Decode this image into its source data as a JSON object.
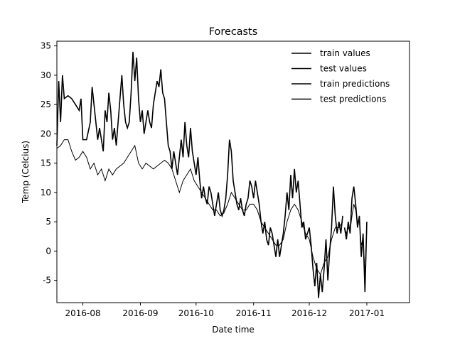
{
  "chart_data": {
    "type": "line",
    "title": "Forecasts",
    "xlabel": "Date time",
    "ylabel": "Temp (Celcius)",
    "x_ticks": [
      "2016-08",
      "2016-09",
      "2016-10",
      "2016-11",
      "2016-12",
      "2017-01"
    ],
    "y_ticks": [
      -5,
      0,
      5,
      10,
      15,
      20,
      25,
      30,
      35
    ],
    "xlim": [
      "2016-07-18",
      "2017-01-24"
    ],
    "ylim": [
      -8.8,
      35.8
    ],
    "grid": false,
    "legend": {
      "placement": "top-right",
      "entries": [
        "train values",
        "test values",
        "train predictions",
        "test predictions"
      ]
    },
    "colors": {
      "line": "#000000",
      "text": "#000000",
      "background": "#ffffff"
    },
    "series": [
      {
        "name": "train values",
        "points": [
          [
            "2016-07-18",
            18
          ],
          [
            "2016-07-19",
            29
          ],
          [
            "2016-07-20",
            22
          ],
          [
            "2016-07-21",
            30
          ],
          [
            "2016-07-22",
            26
          ],
          [
            "2016-07-24",
            26.5
          ],
          [
            "2016-07-26",
            26
          ],
          [
            "2016-07-28",
            25
          ],
          [
            "2016-07-30",
            24
          ],
          [
            "2016-07-31",
            26
          ],
          [
            "2016-08-01",
            19
          ],
          [
            "2016-08-03",
            19
          ],
          [
            "2016-08-05",
            22
          ],
          [
            "2016-08-06",
            28
          ],
          [
            "2016-08-07",
            25
          ],
          [
            "2016-08-08",
            22
          ],
          [
            "2016-08-09",
            19
          ],
          [
            "2016-08-10",
            21
          ],
          [
            "2016-08-11",
            19
          ],
          [
            "2016-08-12",
            17
          ],
          [
            "2016-08-13",
            24
          ],
          [
            "2016-08-14",
            22
          ],
          [
            "2016-08-15",
            27
          ],
          [
            "2016-08-16",
            24
          ],
          [
            "2016-08-17",
            19
          ],
          [
            "2016-08-18",
            21
          ],
          [
            "2016-08-19",
            18
          ],
          [
            "2016-08-20",
            22
          ],
          [
            "2016-08-21",
            26
          ],
          [
            "2016-08-22",
            30
          ],
          [
            "2016-08-23",
            25
          ],
          [
            "2016-08-24",
            22
          ],
          [
            "2016-08-25",
            21
          ],
          [
            "2016-08-26",
            22
          ],
          [
            "2016-08-27",
            27
          ],
          [
            "2016-08-28",
            34
          ],
          [
            "2016-08-29",
            29
          ],
          [
            "2016-08-30",
            33
          ],
          [
            "2016-08-31",
            26
          ],
          [
            "2016-09-01",
            22
          ],
          [
            "2016-09-02",
            24
          ],
          [
            "2016-09-03",
            20
          ],
          [
            "2016-09-04",
            22
          ],
          [
            "2016-09-05",
            24
          ],
          [
            "2016-09-06",
            22
          ],
          [
            "2016-09-07",
            21
          ],
          [
            "2016-09-08",
            25
          ],
          [
            "2016-09-09",
            27
          ],
          [
            "2016-09-10",
            29
          ],
          [
            "2016-09-11",
            28
          ],
          [
            "2016-09-12",
            31
          ],
          [
            "2016-09-13",
            27
          ],
          [
            "2016-09-14",
            26
          ],
          [
            "2016-09-15",
            22
          ],
          [
            "2016-09-16",
            18
          ],
          [
            "2016-09-17",
            17
          ],
          [
            "2016-09-18",
            14
          ],
          [
            "2016-09-19",
            17
          ],
          [
            "2016-09-20",
            15
          ],
          [
            "2016-09-21",
            13
          ],
          [
            "2016-09-22",
            16
          ],
          [
            "2016-09-23",
            19
          ],
          [
            "2016-09-24",
            16
          ],
          [
            "2016-09-25",
            22
          ],
          [
            "2016-09-26",
            18
          ],
          [
            "2016-09-27",
            16
          ],
          [
            "2016-09-28",
            21
          ],
          [
            "2016-09-29",
            17
          ],
          [
            "2016-09-30",
            15
          ],
          [
            "2016-10-01",
            13
          ],
          [
            "2016-10-02",
            16
          ],
          [
            "2016-10-03",
            12
          ],
          [
            "2016-10-04",
            9
          ],
          [
            "2016-10-05",
            11
          ],
          [
            "2016-10-06",
            9
          ],
          [
            "2016-10-07",
            8
          ],
          [
            "2016-10-08",
            11
          ],
          [
            "2016-10-09",
            10
          ],
          [
            "2016-10-10",
            8
          ],
          [
            "2016-10-11",
            6
          ],
          [
            "2016-10-12",
            8
          ],
          [
            "2016-10-13",
            10
          ],
          [
            "2016-10-14",
            7
          ],
          [
            "2016-10-15",
            6
          ],
          [
            "2016-10-16",
            7
          ],
          [
            "2016-10-17",
            9
          ],
          [
            "2016-10-18",
            13
          ],
          [
            "2016-10-19",
            19
          ],
          [
            "2016-10-20",
            17
          ],
          [
            "2016-10-21",
            12
          ],
          [
            "2016-10-22",
            10
          ],
          [
            "2016-10-23",
            8
          ],
          [
            "2016-10-24",
            7
          ],
          [
            "2016-10-25",
            9
          ],
          [
            "2016-10-26",
            7
          ],
          [
            "2016-10-27",
            6
          ],
          [
            "2016-10-28",
            8
          ],
          [
            "2016-10-29",
            9
          ],
          [
            "2016-10-30",
            12
          ],
          [
            "2016-10-31",
            11
          ],
          [
            "2016-11-01",
            9
          ],
          [
            "2016-11-02",
            12
          ],
          [
            "2016-11-03",
            10
          ],
          [
            "2016-11-04",
            8
          ],
          [
            "2016-11-05",
            5
          ],
          [
            "2016-11-06",
            3
          ],
          [
            "2016-11-07",
            5
          ],
          [
            "2016-11-08",
            2
          ],
          [
            "2016-11-09",
            1
          ],
          [
            "2016-11-10",
            4
          ],
          [
            "2016-11-11",
            3
          ],
          [
            "2016-11-12",
            1
          ],
          [
            "2016-11-13",
            -1
          ],
          [
            "2016-11-14",
            2
          ],
          [
            "2016-11-15",
            -1
          ],
          [
            "2016-11-16",
            1
          ],
          [
            "2016-11-17",
            3
          ],
          [
            "2016-11-18",
            6
          ],
          [
            "2016-11-19",
            10
          ],
          [
            "2016-11-20",
            7
          ],
          [
            "2016-11-21",
            13
          ],
          [
            "2016-11-22",
            9
          ],
          [
            "2016-11-23",
            14
          ],
          [
            "2016-11-24",
            10
          ],
          [
            "2016-11-25",
            12
          ],
          [
            "2016-11-26",
            8
          ],
          [
            "2016-11-27",
            4
          ],
          [
            "2016-11-28",
            5
          ],
          [
            "2016-11-29",
            2
          ],
          [
            "2016-11-30",
            3
          ],
          [
            "2016-12-01",
            4
          ],
          [
            "2016-12-02",
            1
          ],
          [
            "2016-12-03",
            -3
          ],
          [
            "2016-12-04",
            -6
          ],
          [
            "2016-12-05",
            -2
          ],
          [
            "2016-12-06",
            -8
          ],
          [
            "2016-12-07",
            -4
          ],
          [
            "2016-12-08",
            -7
          ],
          [
            "2016-12-09",
            -3
          ],
          [
            "2016-12-10",
            2
          ],
          [
            "2016-12-11",
            -5
          ],
          [
            "2016-12-12",
            0
          ],
          [
            "2016-12-13",
            4
          ],
          [
            "2016-12-14",
            11
          ],
          [
            "2016-12-15",
            6
          ],
          [
            "2016-12-16",
            3
          ],
          [
            "2016-12-17",
            5
          ],
          [
            "2016-12-18",
            3
          ],
          [
            "2016-12-19",
            6
          ]
        ]
      },
      {
        "name": "test values",
        "points": [
          [
            "2016-12-20",
            4
          ],
          [
            "2016-12-21",
            2
          ],
          [
            "2016-12-22",
            5
          ],
          [
            "2016-12-23",
            3
          ],
          [
            "2016-12-24",
            9
          ],
          [
            "2016-12-25",
            11
          ],
          [
            "2016-12-26",
            8
          ],
          [
            "2016-12-27",
            4
          ],
          [
            "2016-12-28",
            6
          ],
          [
            "2016-12-29",
            -1
          ],
          [
            "2016-12-30",
            3
          ],
          [
            "2016-12-31",
            -7
          ],
          [
            "2017-01-01",
            5
          ]
        ]
      },
      {
        "name": "train predictions",
        "points": [
          [
            "2016-07-18",
            17.5
          ],
          [
            "2016-07-20",
            18
          ],
          [
            "2016-07-22",
            19
          ],
          [
            "2016-07-24",
            19
          ],
          [
            "2016-07-26",
            17
          ],
          [
            "2016-07-28",
            15.5
          ],
          [
            "2016-07-30",
            16
          ],
          [
            "2016-08-01",
            17
          ],
          [
            "2016-08-03",
            16
          ],
          [
            "2016-08-05",
            14
          ],
          [
            "2016-08-07",
            15
          ],
          [
            "2016-08-09",
            13
          ],
          [
            "2016-08-11",
            14
          ],
          [
            "2016-08-13",
            12
          ],
          [
            "2016-08-15",
            14
          ],
          [
            "2016-08-17",
            13
          ],
          [
            "2016-08-19",
            14
          ],
          [
            "2016-08-21",
            14.5
          ],
          [
            "2016-08-23",
            15
          ],
          [
            "2016-08-25",
            16
          ],
          [
            "2016-08-27",
            17
          ],
          [
            "2016-08-29",
            18
          ],
          [
            "2016-08-31",
            15
          ],
          [
            "2016-09-02",
            14
          ],
          [
            "2016-09-04",
            15
          ],
          [
            "2016-09-06",
            14.5
          ],
          [
            "2016-09-08",
            14
          ],
          [
            "2016-09-10",
            14.5
          ],
          [
            "2016-09-12",
            15
          ],
          [
            "2016-09-14",
            15.5
          ],
          [
            "2016-09-16",
            15
          ],
          [
            "2016-09-18",
            14
          ],
          [
            "2016-09-20",
            12
          ],
          [
            "2016-09-22",
            10
          ],
          [
            "2016-09-24",
            12
          ],
          [
            "2016-09-26",
            13
          ],
          [
            "2016-09-28",
            14
          ],
          [
            "2016-09-30",
            12
          ],
          [
            "2016-10-02",
            11
          ],
          [
            "2016-10-04",
            10
          ],
          [
            "2016-10-06",
            9
          ],
          [
            "2016-10-08",
            8
          ],
          [
            "2016-10-10",
            7
          ],
          [
            "2016-10-12",
            7
          ],
          [
            "2016-10-14",
            6
          ],
          [
            "2016-10-16",
            6.5
          ],
          [
            "2016-10-18",
            8
          ],
          [
            "2016-10-20",
            10
          ],
          [
            "2016-10-22",
            9
          ],
          [
            "2016-10-24",
            8
          ],
          [
            "2016-10-26",
            7
          ],
          [
            "2016-10-28",
            7
          ],
          [
            "2016-10-30",
            8
          ],
          [
            "2016-11-01",
            8
          ],
          [
            "2016-11-03",
            7
          ],
          [
            "2016-11-05",
            5
          ],
          [
            "2016-11-07",
            4
          ],
          [
            "2016-11-09",
            3
          ],
          [
            "2016-11-11",
            2
          ],
          [
            "2016-11-13",
            1
          ],
          [
            "2016-11-15",
            1
          ],
          [
            "2016-11-17",
            2
          ],
          [
            "2016-11-19",
            5
          ],
          [
            "2016-11-21",
            7
          ],
          [
            "2016-11-23",
            8
          ],
          [
            "2016-11-25",
            7
          ],
          [
            "2016-11-27",
            5
          ],
          [
            "2016-11-29",
            3
          ],
          [
            "2016-12-01",
            2
          ],
          [
            "2016-12-03",
            -1
          ],
          [
            "2016-12-05",
            -3
          ],
          [
            "2016-12-07",
            -4
          ],
          [
            "2016-12-09",
            -2
          ],
          [
            "2016-12-11",
            -1
          ],
          [
            "2016-12-13",
            2
          ],
          [
            "2016-12-15",
            4
          ],
          [
            "2016-12-17",
            4
          ],
          [
            "2016-12-19",
            5
          ]
        ]
      },
      {
        "name": "test predictions",
        "points": [
          [
            "2016-12-20",
            4
          ],
          [
            "2016-12-21",
            3
          ],
          [
            "2016-12-22",
            4
          ],
          [
            "2016-12-23",
            3.5
          ],
          [
            "2016-12-24",
            6
          ],
          [
            "2016-12-25",
            8
          ],
          [
            "2016-12-26",
            7
          ],
          [
            "2016-12-27",
            5
          ],
          [
            "2016-12-28",
            5
          ],
          [
            "2016-12-29",
            1
          ],
          [
            "2016-12-30",
            2
          ],
          [
            "2016-12-31",
            -4
          ],
          [
            "2017-01-01",
            4
          ]
        ]
      }
    ]
  }
}
